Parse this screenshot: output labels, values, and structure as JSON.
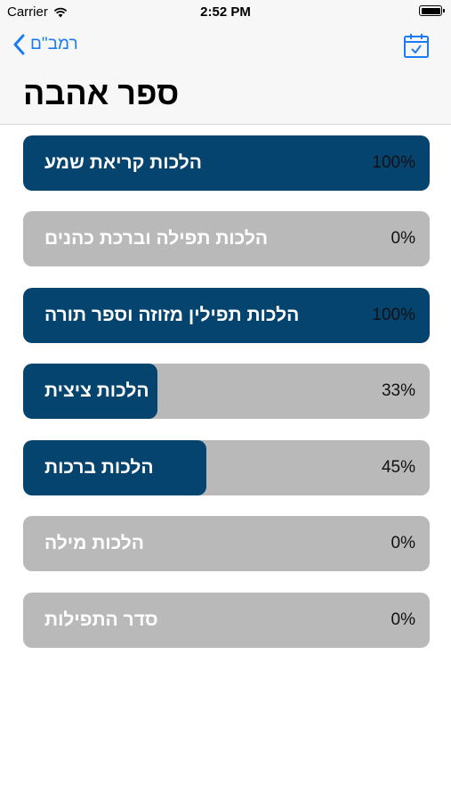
{
  "status_bar": {
    "carrier": "Carrier",
    "time": "2:52 PM"
  },
  "nav": {
    "back_label": "רמב\"ם",
    "title": "ספר אהבה"
  },
  "items": [
    {
      "title": "הלכות קריאת שמע",
      "percent_label": "100%",
      "progress": 100
    },
    {
      "title": "הלכות תפילה וברכת כהנים",
      "percent_label": "0%",
      "progress": 0
    },
    {
      "title": "הלכות תפילין מזוזה וספר תורה",
      "percent_label": "100%",
      "progress": 100
    },
    {
      "title": "הלכות ציצית",
      "percent_label": "33%",
      "progress": 33
    },
    {
      "title": "הלכות ברכות",
      "percent_label": "45%",
      "progress": 45
    },
    {
      "title": "הלכות מילה",
      "percent_label": "0%",
      "progress": 0
    },
    {
      "title": "סדר התפילות",
      "percent_label": "0%",
      "progress": 0
    }
  ],
  "colors": {
    "progress_fill": "#05446f",
    "track": "#b9b9b9",
    "accent": "#1a7cf5"
  }
}
